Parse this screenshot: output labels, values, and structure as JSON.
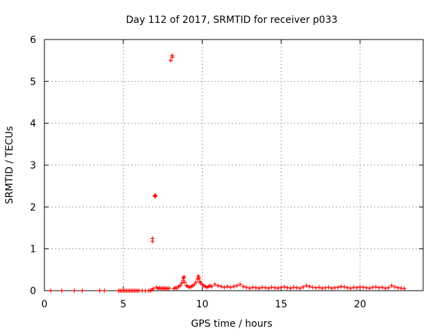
{
  "chart_data": {
    "type": "scatter",
    "title": "Day 112 of 2017, SRMTID for receiver p033",
    "xlabel": "GPS time / hours",
    "ylabel": "SRMTID / TECUs",
    "xlim": [
      0,
      24
    ],
    "ylim": [
      0,
      6
    ],
    "xticks": [
      0,
      5,
      10,
      15,
      20
    ],
    "yticks": [
      0,
      1,
      2,
      3,
      4,
      5,
      6
    ],
    "xtick_labels": [
      "0",
      "5",
      "10",
      "15",
      "20"
    ],
    "ytick_labels": [
      "0",
      "1",
      "2",
      "3",
      "4",
      "5",
      "6"
    ],
    "grid": true,
    "legend": "none",
    "marker": "plus",
    "series_color": "#ff0000",
    "series": [
      {
        "x": [
          0.4,
          1.1,
          1.9,
          2.4,
          3.5,
          3.8,
          4.7,
          4.8,
          4.9,
          5.0,
          5.1,
          5.2,
          5.3,
          5.4,
          5.5,
          5.6,
          5.7,
          5.8,
          5.9,
          6.0,
          6.2,
          6.4,
          6.6,
          6.7,
          6.8,
          6.85,
          6.85,
          6.9,
          7.0,
          7.0,
          7.05,
          7.1,
          7.2,
          7.3,
          7.4,
          7.5,
          7.6,
          7.7,
          7.8,
          7.9,
          8.0,
          8.1,
          8.1,
          8.2,
          8.3,
          8.4,
          8.5,
          8.6,
          8.7,
          8.8,
          8.8,
          8.85,
          8.9,
          9.0,
          9.1,
          9.2,
          9.3,
          9.4,
          9.5,
          9.6,
          9.7,
          9.75,
          9.8,
          9.85,
          9.9,
          10.0,
          10.1,
          10.2,
          10.3,
          10.4,
          10.5,
          10.6,
          10.8,
          11.0,
          11.2,
          11.4,
          11.6,
          11.8,
          12.0,
          12.2,
          12.4,
          12.6,
          12.8,
          13.0,
          13.2,
          13.4,
          13.6,
          13.8,
          14.0,
          14.2,
          14.4,
          14.6,
          14.8,
          15.0,
          15.2,
          15.4,
          15.6,
          15.8,
          16.0,
          16.2,
          16.4,
          16.6,
          16.8,
          17.0,
          17.2,
          17.4,
          17.6,
          17.8,
          18.0,
          18.2,
          18.4,
          18.6,
          18.8,
          19.0,
          19.2,
          19.4,
          19.6,
          19.8,
          20.0,
          20.2,
          20.4,
          20.6,
          20.8,
          21.0,
          21.2,
          21.4,
          21.6,
          21.8,
          22.0,
          22.2,
          22.4,
          22.6,
          22.8
        ],
        "y": [
          0.0,
          0.0,
          0.0,
          0.0,
          0.0,
          0.0,
          0.0,
          0.0,
          0.0,
          0.0,
          0.0,
          0.0,
          0.0,
          0.0,
          0.0,
          0.0,
          0.0,
          0.0,
          0.0,
          0.0,
          0.0,
          0.0,
          0.0,
          0.0,
          0.02,
          1.25,
          1.18,
          0.05,
          2.25,
          2.28,
          2.27,
          0.08,
          0.05,
          0.07,
          0.05,
          0.06,
          0.05,
          0.06,
          0.05,
          0.06,
          5.5,
          5.58,
          5.62,
          0.05,
          0.07,
          0.06,
          0.1,
          0.12,
          0.18,
          0.3,
          0.25,
          0.33,
          0.2,
          0.12,
          0.1,
          0.08,
          0.1,
          0.12,
          0.15,
          0.2,
          0.28,
          0.35,
          0.3,
          0.22,
          0.18,
          0.15,
          0.12,
          0.1,
          0.08,
          0.1,
          0.12,
          0.1,
          0.15,
          0.12,
          0.1,
          0.08,
          0.1,
          0.08,
          0.1,
          0.12,
          0.15,
          0.1,
          0.08,
          0.06,
          0.08,
          0.07,
          0.06,
          0.08,
          0.07,
          0.06,
          0.08,
          0.07,
          0.06,
          0.08,
          0.09,
          0.07,
          0.06,
          0.08,
          0.07,
          0.06,
          0.09,
          0.12,
          0.1,
          0.08,
          0.07,
          0.08,
          0.06,
          0.07,
          0.08,
          0.06,
          0.07,
          0.08,
          0.1,
          0.09,
          0.07,
          0.06,
          0.08,
          0.07,
          0.09,
          0.08,
          0.07,
          0.06,
          0.08,
          0.09,
          0.07,
          0.08,
          0.06,
          0.07,
          0.12,
          0.09,
          0.07,
          0.06,
          0.05
        ]
      }
    ]
  }
}
